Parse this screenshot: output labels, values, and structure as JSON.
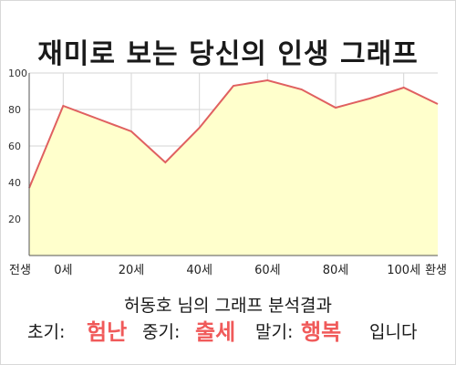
{
  "title": "재미로 보는 당신의 인생 그래프",
  "colors": {
    "fill": "#ffffcc",
    "line": "#e06060",
    "grid": "#d6d6d6",
    "highlight": "#f05a5a"
  },
  "chart_data": {
    "type": "area",
    "x_labels": [
      "전생",
      "0세",
      "20세",
      "40세",
      "60세",
      "80세",
      "100세",
      "환생"
    ],
    "x": [
      "전생",
      "0세",
      "10세",
      "20세",
      "30세",
      "40세",
      "50세",
      "60세",
      "70세",
      "80세",
      "90세",
      "100세",
      "환생"
    ],
    "values": [
      37,
      82,
      75,
      68,
      51,
      70,
      93,
      96,
      91,
      81,
      86,
      92,
      83
    ],
    "ylim": [
      0,
      100
    ],
    "y_ticks": [
      20,
      40,
      60,
      80,
      100
    ],
    "grid": true
  },
  "result": {
    "title": "허동호 님의 그래프 분석결과",
    "early_label": "초기:",
    "early_value": "험난",
    "middle_label": "중기:",
    "middle_value": "출세",
    "late_label": "말기:",
    "late_value": "행복",
    "suffix": "입니다"
  }
}
